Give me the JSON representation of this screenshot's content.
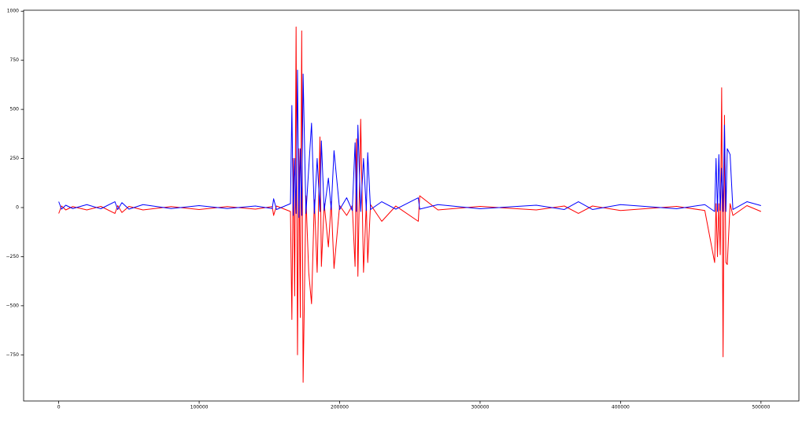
{
  "chart_data": {
    "type": "line",
    "x": [
      0,
      2000,
      5000,
      10000,
      20000,
      30000,
      40000,
      42000,
      45000,
      50000,
      60000,
      80000,
      100000,
      120000,
      140000,
      152000,
      153000,
      155000,
      165000,
      166000,
      167000,
      168000,
      169000,
      170000,
      171000,
      172000,
      173000,
      174000,
      176000,
      178000,
      180000,
      182000,
      184000,
      186000,
      187000,
      189000,
      192000,
      194000,
      196000,
      200000,
      205000,
      209000,
      211000,
      212000,
      213000,
      215000,
      217000,
      219000,
      220000,
      222000,
      230000,
      240000,
      256000,
      257000,
      270000,
      300000,
      340000,
      360000,
      370000,
      380000,
      400000,
      440000,
      460000,
      467000,
      468000,
      469000,
      470000,
      471000,
      472000,
      473000,
      474000,
      475000,
      476000,
      478000,
      480000,
      490000,
      500000
    ],
    "series": [
      {
        "color": "#ff0000",
        "values": [
          -30,
          8,
          -12,
          5,
          -12,
          6,
          -30,
          10,
          -25,
          6,
          -12,
          5,
          -10,
          5,
          -8,
          5,
          -40,
          8,
          -20,
          -570,
          250,
          -450,
          920,
          -750,
          300,
          -560,
          900,
          -890,
          60,
          -330,
          -490,
          40,
          -330,
          360,
          -300,
          20,
          -200,
          30,
          -310,
          10,
          -40,
          10,
          -300,
          350,
          -350,
          450,
          -330,
          20,
          -280,
          15,
          -70,
          8,
          -70,
          60,
          -12,
          6,
          -12,
          8,
          -30,
          8,
          -15,
          6,
          -15,
          -280,
          20,
          -250,
          20,
          -240,
          610,
          -760,
          470,
          -280,
          -290,
          20,
          -40,
          10,
          -20
        ]
      },
      {
        "color": "#0000ff",
        "values": [
          30,
          -8,
          12,
          -5,
          15,
          -6,
          30,
          -10,
          25,
          -8,
          15,
          -5,
          10,
          -5,
          8,
          -5,
          45,
          -10,
          20,
          520,
          -40,
          250,
          -30,
          700,
          -50,
          300,
          -40,
          680,
          -30,
          200,
          430,
          -30,
          250,
          -20,
          340,
          -15,
          150,
          -10,
          290,
          -10,
          50,
          -15,
          330,
          -20,
          420,
          -20,
          250,
          -15,
          280,
          -10,
          30,
          -8,
          50,
          -8,
          15,
          -6,
          12,
          -10,
          30,
          -10,
          15,
          -6,
          15,
          -20,
          250,
          -20,
          270,
          -15,
          200,
          -20,
          420,
          -20,
          300,
          270,
          -10,
          30,
          10
        ]
      }
    ],
    "xlim": [
      -25000,
      527000
    ],
    "ylim": [
      -985,
      1005
    ],
    "xticks": [
      0,
      100000,
      200000,
      300000,
      400000,
      500000
    ],
    "yticks": [
      {
        "value": -750,
        "label": "−750"
      },
      {
        "value": -500,
        "label": "−500"
      },
      {
        "value": -250,
        "label": "−250"
      },
      0,
      250,
      500,
      750,
      1000
    ]
  }
}
